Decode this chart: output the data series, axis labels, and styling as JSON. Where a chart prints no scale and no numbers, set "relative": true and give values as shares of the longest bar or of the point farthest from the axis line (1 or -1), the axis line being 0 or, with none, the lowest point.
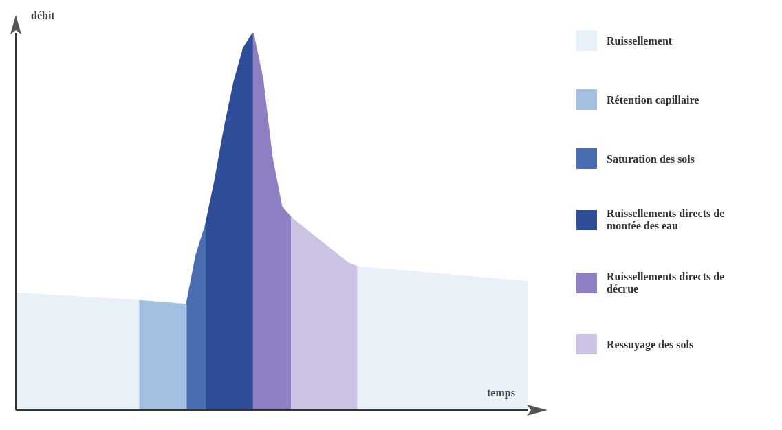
{
  "chart_data": {
    "type": "area",
    "relative": true,
    "xlabel": "temps",
    "ylabel": "débit",
    "legend": "right",
    "categories": [
      null,
      null,
      null,
      null,
      null,
      null,
      null,
      null,
      null,
      null,
      null,
      null,
      null,
      null,
      null,
      null,
      null,
      null,
      null,
      null,
      null,
      null,
      null,
      null,
      null,
      null,
      null,
      null,
      null,
      null,
      null,
      null,
      null,
      null,
      null,
      null,
      null,
      null,
      null,
      null,
      null,
      null,
      null,
      null,
      null,
      null,
      null,
      null,
      null,
      null,
      null,
      null,
      null,
      null,
      null
    ],
    "series": [
      {
        "name": "Ruissellement",
        "color": "#e8f0f8",
        "values": [
          0.31,
          null,
          null,
          null,
          null,
          null,
          null,
          null,
          null,
          null,
          null,
          null,
          null,
          0.29,
          null,
          null,
          null,
          null,
          null,
          null,
          null,
          null,
          null,
          null,
          null,
          null,
          null,
          null,
          null,
          null,
          null,
          null,
          null,
          null,
          null,
          null,
          null,
          null,
          null,
          null,
          null,
          null,
          null,
          null,
          null,
          null,
          null,
          null,
          null,
          null,
          null,
          null,
          null,
          null,
          null
        ]
      },
      {
        "name": "Rétention capillaire",
        "color": "#a3c0e2",
        "values": [
          null,
          null,
          null,
          null,
          null,
          null,
          null,
          null,
          null,
          null,
          null,
          null,
          null,
          0.29,
          null,
          null,
          null,
          null,
          0.28,
          null,
          null,
          null,
          null,
          null,
          null,
          null,
          null,
          null,
          null,
          null,
          null,
          null,
          null,
          null,
          null,
          null,
          null,
          null,
          null,
          null,
          null,
          null,
          null,
          null,
          null,
          null,
          null,
          null,
          null,
          null,
          null,
          null,
          null,
          null,
          null
        ]
      },
      {
        "name": "Saturation des sols",
        "color": "#4a6cb0",
        "values": [
          null,
          null,
          null,
          null,
          null,
          null,
          null,
          null,
          null,
          null,
          null,
          null,
          null,
          null,
          null,
          null,
          null,
          null,
          0.28,
          0.41,
          0.49,
          null,
          null,
          null,
          null,
          null,
          null,
          null,
          null,
          null,
          null,
          null,
          null,
          null,
          null,
          null,
          null,
          null,
          null,
          null,
          null,
          null,
          null,
          null,
          null,
          null,
          null,
          null,
          null,
          null,
          null,
          null,
          null,
          null,
          null
        ]
      },
      {
        "name": "Ruissellements directs de montée des eau",
        "color": "#2e4f98",
        "values": [
          null,
          null,
          null,
          null,
          null,
          null,
          null,
          null,
          null,
          null,
          null,
          null,
          null,
          null,
          null,
          null,
          null,
          null,
          null,
          null,
          0.49,
          0.61,
          0.75,
          0.87,
          0.96,
          1,
          null,
          null,
          null,
          null,
          null,
          null,
          null,
          null,
          null,
          null,
          null,
          null,
          null,
          null,
          null,
          null,
          null,
          null,
          null,
          null,
          null,
          null,
          null,
          null,
          null,
          null,
          null,
          null,
          null
        ]
      },
      {
        "name": "Ruissellements directs de décrue",
        "color": "#8f7fc2",
        "values": [
          null,
          null,
          null,
          null,
          null,
          null,
          null,
          null,
          null,
          null,
          null,
          null,
          null,
          null,
          null,
          null,
          null,
          null,
          null,
          null,
          null,
          null,
          null,
          null,
          null,
          1,
          0.88,
          0.67,
          0.54,
          0.51,
          null,
          null,
          null,
          null,
          null,
          null,
          null,
          null,
          null,
          null,
          null,
          null,
          null,
          null,
          null,
          null,
          null,
          null,
          null,
          null,
          null,
          null,
          null,
          null,
          null
        ]
      },
      {
        "name": "Ressuyage des sols",
        "color": "#cbc2e4",
        "values": [
          null,
          null,
          null,
          null,
          null,
          null,
          null,
          null,
          null,
          null,
          null,
          null,
          null,
          null,
          null,
          null,
          null,
          null,
          null,
          null,
          null,
          null,
          null,
          null,
          null,
          null,
          null,
          null,
          null,
          0.51,
          0.49,
          0.47,
          0.45,
          0.43,
          0.41,
          0.39,
          0.38,
          null,
          null,
          null,
          null,
          null,
          null,
          null,
          null,
          null,
          null,
          null,
          null,
          null,
          null,
          null,
          null,
          null,
          null
        ]
      },
      {
        "color": "#e8f0f8",
        "values": [
          null,
          null,
          null,
          null,
          null,
          null,
          null,
          null,
          null,
          null,
          null,
          null,
          null,
          null,
          null,
          null,
          null,
          null,
          null,
          null,
          null,
          null,
          null,
          null,
          null,
          null,
          null,
          null,
          null,
          null,
          null,
          null,
          null,
          null,
          null,
          null,
          0.38,
          null,
          null,
          null,
          null,
          null,
          null,
          null,
          null,
          null,
          null,
          null,
          null,
          null,
          null,
          null,
          null,
          null,
          0.34
        ]
      }
    ]
  }
}
